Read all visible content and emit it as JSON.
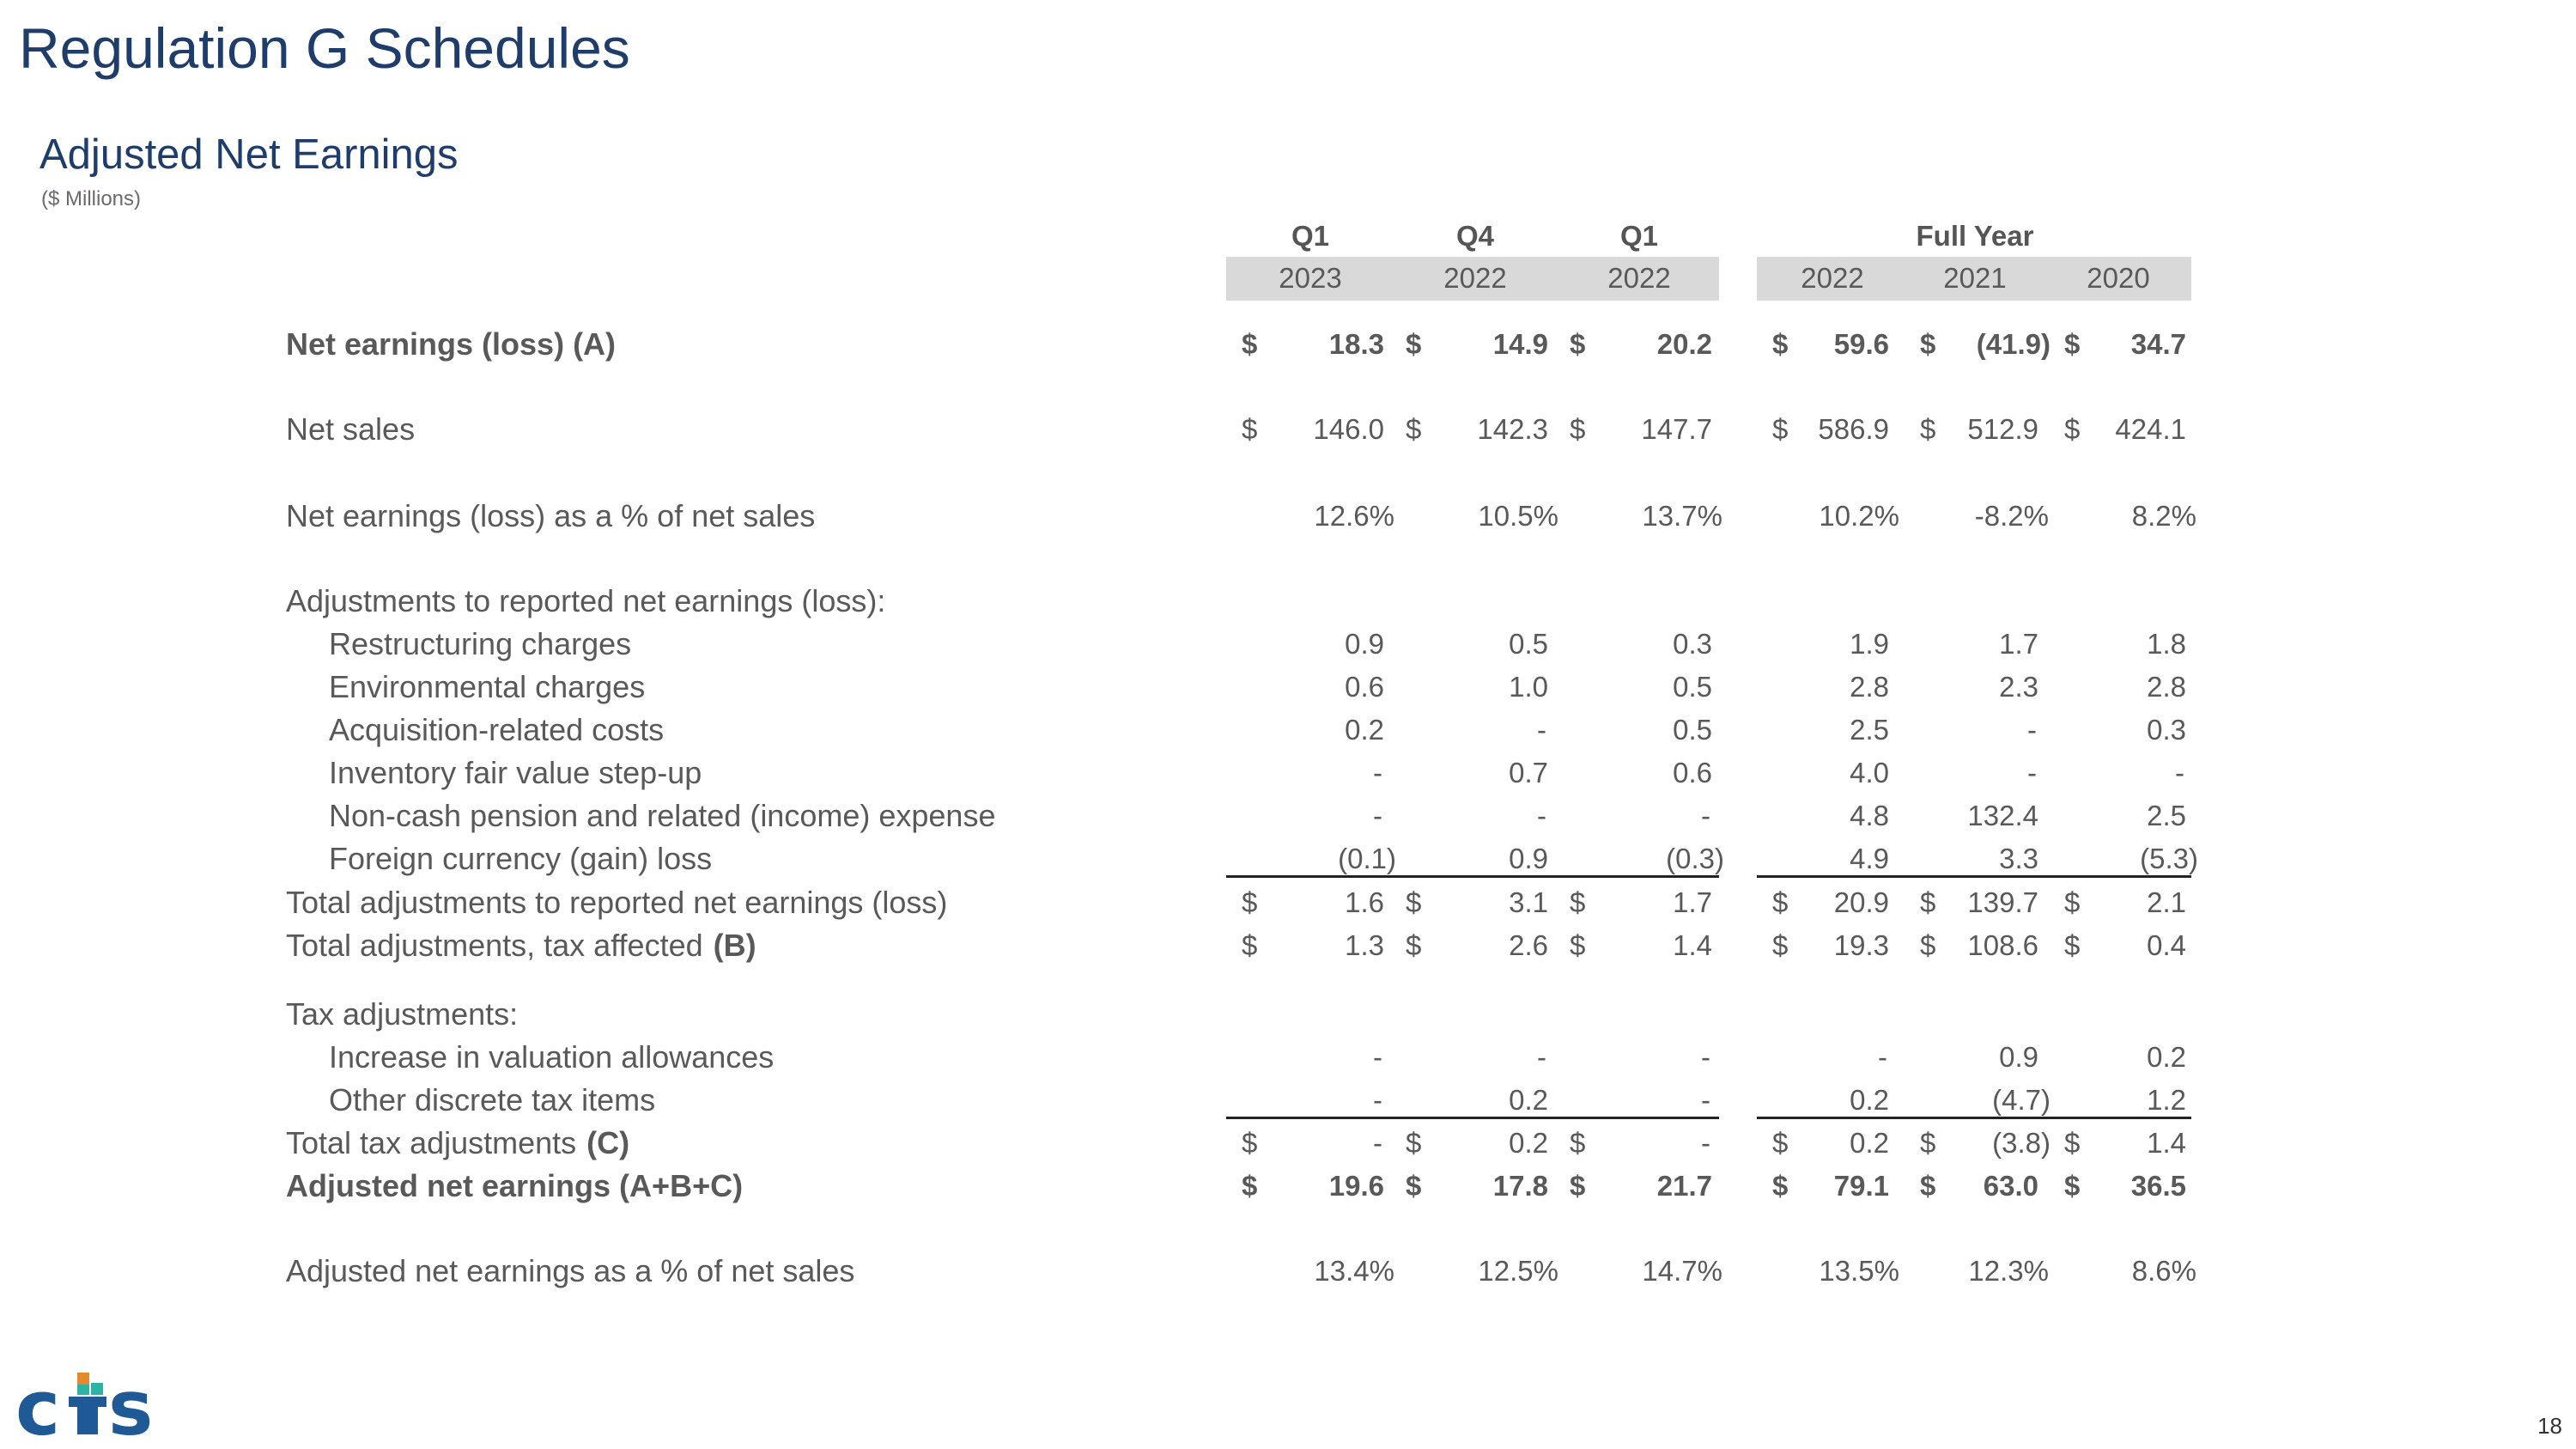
{
  "title": "Regulation G Schedules",
  "subtitle": "Adjusted Net Earnings",
  "units": "($ Millions)",
  "page_number": "18",
  "logo": {
    "text": "cts",
    "colors": [
      "#1f5a96",
      "#2bb3a6",
      "#e58a2c"
    ]
  },
  "columns": [
    {
      "quarter": "Q1",
      "year": "2023"
    },
    {
      "quarter": "Q4",
      "year": "2022"
    },
    {
      "quarter": "Q1",
      "year": "2022"
    },
    {
      "quarter": "",
      "year": "2022"
    },
    {
      "quarter": "Full Year",
      "year": "2021"
    },
    {
      "quarter": "",
      "year": "2020"
    }
  ],
  "rows": [
    {
      "label": "Net earnings (loss) (A)",
      "bold": true,
      "dollar": true,
      "values": [
        "18.3",
        "14.9",
        "20.2",
        "59.6",
        "(41.9)",
        "34.7"
      ]
    },
    {
      "label": "Net sales",
      "dollar": true,
      "values": [
        "146.0",
        "142.3",
        "147.7",
        "586.9",
        "512.9",
        "424.1"
      ]
    },
    {
      "label": "Net earnings (loss) as a % of net sales",
      "values": [
        "12.6%",
        "10.5%",
        "13.7%",
        "10.2%",
        "-8.2%",
        "8.2%"
      ]
    },
    {
      "label": "Adjustments to reported net earnings (loss):",
      "values": []
    },
    {
      "label": "Restructuring charges",
      "indent": true,
      "values": [
        "0.9",
        "0.5",
        "0.3",
        "1.9",
        "1.7",
        "1.8"
      ]
    },
    {
      "label": "Environmental charges",
      "indent": true,
      "values": [
        "0.6",
        "1.0",
        "0.5",
        "2.8",
        "2.3",
        "2.8"
      ]
    },
    {
      "label": "Acquisition-related costs",
      "indent": true,
      "values": [
        "0.2",
        "-",
        "0.5",
        "2.5",
        "-",
        "0.3"
      ]
    },
    {
      "label": "Inventory fair value step-up",
      "indent": true,
      "values": [
        "-",
        "0.7",
        "0.6",
        "4.0",
        "-",
        "-"
      ]
    },
    {
      "label": "Non-cash pension and related (income) expense",
      "indent": true,
      "values": [
        "-",
        "-",
        "-",
        "4.8",
        "132.4",
        "2.5"
      ]
    },
    {
      "label": "Foreign currency (gain) loss",
      "indent": true,
      "values": [
        "(0.1)",
        "0.9",
        "(0.3)",
        "4.9",
        "3.3",
        "(5.3)"
      ]
    },
    {
      "label": "Total adjustments to reported net earnings (loss)",
      "dollar": true,
      "values": [
        "1.6",
        "3.1",
        "1.7",
        "20.9",
        "139.7",
        "2.1"
      ]
    },
    {
      "label": "Total adjustments, tax affected",
      "suffix": "(B)",
      "dollar": true,
      "values": [
        "1.3",
        "2.6",
        "1.4",
        "19.3",
        "108.6",
        "0.4"
      ]
    },
    {
      "label": "Tax adjustments:",
      "values": []
    },
    {
      "label": "Increase in valuation allowances",
      "indent": true,
      "values": [
        "-",
        "-",
        "-",
        "-",
        "0.9",
        "0.2"
      ]
    },
    {
      "label": "Other discrete tax items",
      "indent": true,
      "values": [
        "-",
        "0.2",
        "-",
        "0.2",
        "(4.7)",
        "1.2"
      ]
    },
    {
      "label": "Total tax adjustments",
      "suffix": "(C)",
      "dollar": true,
      "values": [
        "-",
        "0.2",
        "-",
        "0.2",
        "(3.8)",
        "1.4"
      ]
    },
    {
      "label": "Adjusted net earnings (A+B+C)",
      "bold": true,
      "dollar": true,
      "values": [
        "19.6",
        "17.8",
        "21.7",
        "79.1",
        "63.0",
        "36.5"
      ]
    },
    {
      "label": "Adjusted net earnings as a % of net sales",
      "values": [
        "13.4%",
        "12.5%",
        "14.7%",
        "13.5%",
        "12.3%",
        "8.6%"
      ]
    }
  ]
}
